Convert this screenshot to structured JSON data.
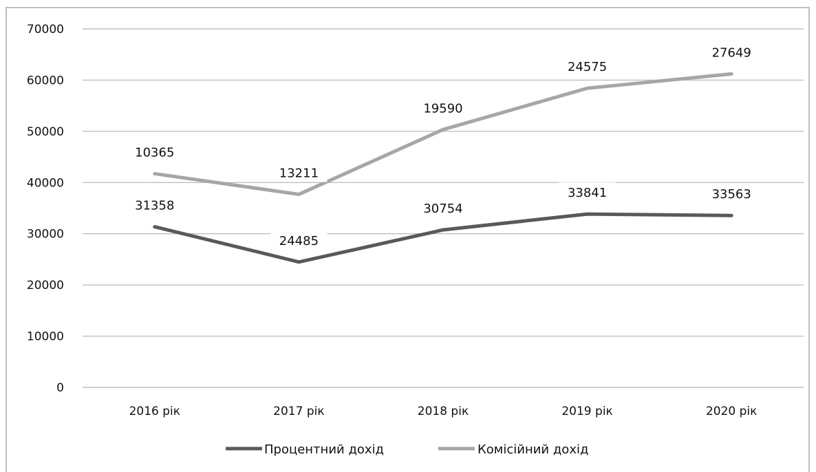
{
  "chart_data": {
    "type": "line",
    "categories": [
      "2016 рік",
      "2017 рік",
      "2018 рік",
      "2019 рік",
      "2020 рік"
    ],
    "ylim": [
      0,
      70000
    ],
    "yticks": [
      0,
      10000,
      20000,
      30000,
      40000,
      50000,
      60000,
      70000
    ],
    "grid": true,
    "legend": "bottom",
    "series": [
      {
        "name": "Процентний дохід",
        "color": "#595959",
        "values": [
          31358,
          24485,
          30754,
          33841,
          33563
        ],
        "labels": [
          "31358",
          "24485",
          "30754",
          "33841",
          "33563"
        ]
      },
      {
        "name": "Комісійний дохід",
        "color": "#a6a6a6",
        "values": [
          41723,
          37696,
          50344,
          58416,
          61212
        ],
        "labels": [
          "10365",
          "13211",
          "19590",
          "24575",
          "27649"
        ]
      }
    ]
  }
}
